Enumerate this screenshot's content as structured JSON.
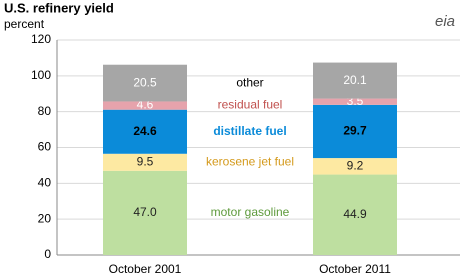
{
  "chart_data": {
    "type": "stacked_bar",
    "title": "U.S. refinery yield",
    "y_label": "percent",
    "logo": "eia",
    "categories": [
      "October 2001",
      "October 2011"
    ],
    "series": [
      {
        "name": "motor gasoline",
        "color": "#bedfa0",
        "label_color": "#5e9a3c",
        "value_label_color": "#222222",
        "values": [
          47.0,
          44.9
        ],
        "value_labels": [
          "47.0",
          "44.9"
        ]
      },
      {
        "name": "kerosene jet fuel",
        "color": "#fde9a2",
        "label_color": "#d49a1c",
        "value_label_color": "#222222",
        "values": [
          9.5,
          9.2
        ],
        "value_labels": [
          "9.5",
          "9.2"
        ]
      },
      {
        "name": "distillate fuel",
        "color": "#0b8bd9",
        "label_color": "#0b8bd9",
        "value_label_color": "#000000",
        "values": [
          24.6,
          29.7
        ],
        "value_labels": [
          "24.6",
          "29.7"
        ]
      },
      {
        "name": "residual fuel",
        "color": "#e6a3ac",
        "label_color": "#c0504d",
        "value_label_color": "#ffffff",
        "values": [
          4.6,
          3.5
        ],
        "value_labels": [
          "4.6",
          "3.5"
        ]
      },
      {
        "name": "other",
        "color": "#a6a6a6",
        "label_color": "#000000",
        "value_label_color": "#ffffff",
        "values": [
          20.5,
          20.1
        ],
        "value_labels": [
          "20.5",
          "20.1"
        ]
      }
    ],
    "ylim": [
      0,
      120
    ],
    "yticks": [
      0,
      20,
      40,
      60,
      80,
      100,
      120
    ],
    "grid": true
  }
}
